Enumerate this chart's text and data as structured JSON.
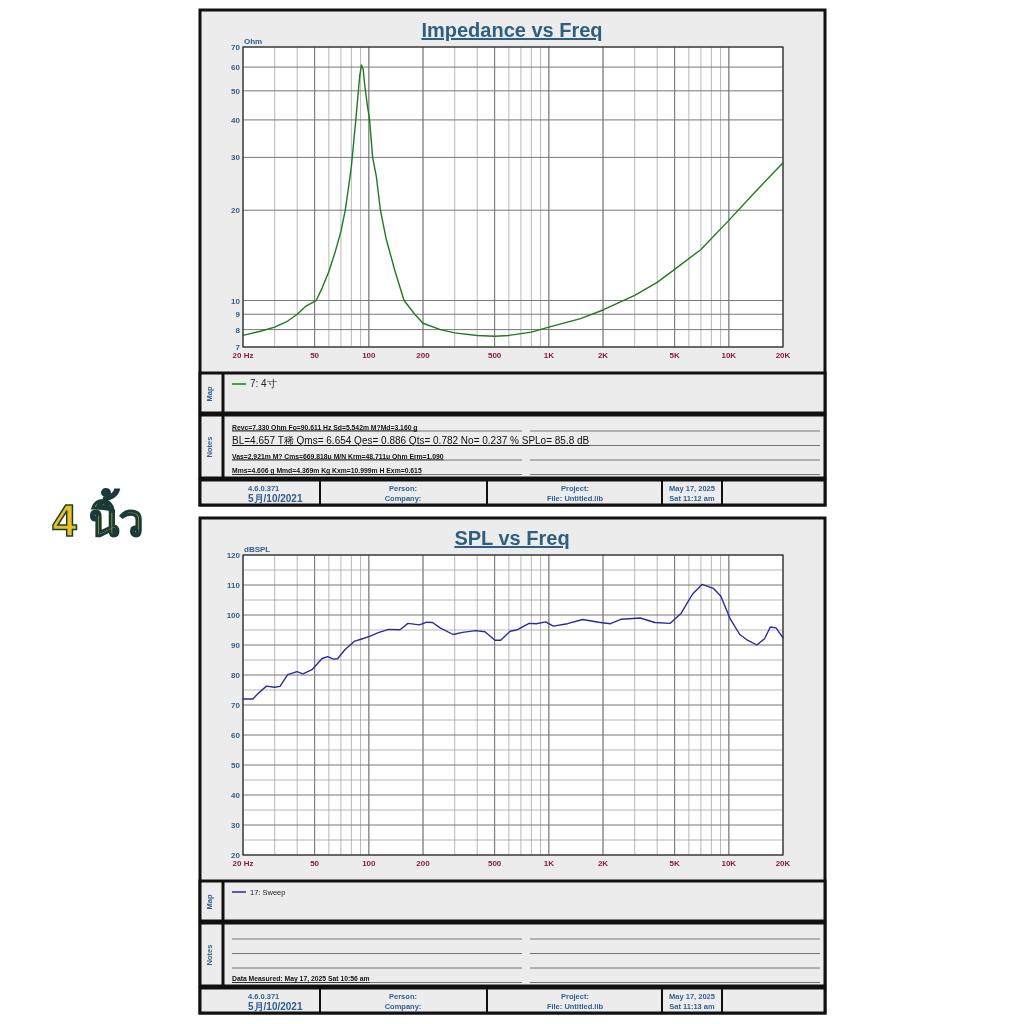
{
  "chart_data": [
    {
      "type": "line",
      "title": "Impedance vs Freq",
      "ylabel": "Ohm",
      "log": "xy",
      "grid": true,
      "legend": "bottom",
      "line_style": "solid",
      "xlim": [
        20,
        20000
      ],
      "ylim": [
        7,
        70
      ],
      "xticks": [
        {
          "value": 20,
          "label": "20  Hz"
        },
        50,
        100,
        200,
        500,
        {
          "value": 1000,
          "label": "1K"
        },
        {
          "value": 2000,
          "label": "2K"
        },
        {
          "value": 5000,
          "label": "5K"
        },
        {
          "value": 10000,
          "label": "10K"
        },
        {
          "value": 20000,
          "label": "20K"
        }
      ],
      "yticks": [
        7,
        8,
        9,
        10,
        20,
        30,
        40,
        50,
        60,
        70
      ],
      "series": [
        {
          "name": "7: 4寸",
          "color": "#1f7a1f",
          "x": [
            20,
            25,
            30,
            35,
            40,
            45,
            51,
            55,
            60,
            65,
            70,
            74,
            78,
            80,
            84,
            87,
            89,
            91,
            93,
            95,
            98,
            101,
            105,
            110,
            116,
            125,
            140,
            157,
            180,
            200,
            250,
            300,
            400,
            500,
            600,
            800,
            1000,
            1500,
            2000,
            3000,
            4000,
            5000,
            7000,
            10000,
            14000,
            20000
          ],
          "values": [
            7.65,
            7.9,
            8.15,
            8.5,
            9.0,
            9.6,
            10,
            11,
            12.5,
            14.5,
            17,
            20,
            25,
            28,
            38,
            48,
            56,
            61,
            59,
            52,
            45,
            40,
            30,
            26,
            20,
            16,
            12.5,
            10,
            9.0,
            8.4,
            8.0,
            7.8,
            7.65,
            7.6,
            7.65,
            7.85,
            8.15,
            8.7,
            9.3,
            10.4,
            11.5,
            12.7,
            14.8,
            18.5,
            23,
            28.8
          ]
        }
      ],
      "annotations": [
        "Map",
        "Notes",
        "4.6.0.371",
        "5月/10/2021",
        "Person:",
        "Company:",
        "Project:",
        "File: Untitled.lib",
        "May 17, 2025",
        "Sat 11:12 am",
        "Revc=7.330 Ohm  Fo=90.611 Hz  Sd=5.542m M?Md=3.160 g",
        "BL=4.657 T稀  Qms= 6.654  Qes= 0.886  Qts= 0.782  No= 0.237 %  SPLo= 85.8 dB",
        "Vas=2.921m M? Cms=669.818u M/N  Krm=48.711u Ohm  Erm=1.090",
        "Mms=4.606 g  Mmd=4.369m Kg  Kxm=10.999m H  Exm=0.615",
        "4 นิ้ว"
      ]
    },
    {
      "type": "line",
      "title": "SPL vs Freq",
      "ylabel": "dBSPL",
      "log": "x",
      "grid": true,
      "legend": "bottom",
      "line_style": "solid",
      "xlim": [
        20,
        20000
      ],
      "ylim": [
        20,
        120
      ],
      "xticks": [
        {
          "value": 20,
          "label": "20  Hz"
        },
        50,
        100,
        200,
        500,
        {
          "value": 1000,
          "label": "1K"
        },
        {
          "value": 2000,
          "label": "2K"
        },
        {
          "value": 5000,
          "label": "5K"
        },
        {
          "value": 10000,
          "label": "10K"
        },
        {
          "value": 20000,
          "label": "20K"
        }
      ],
      "yticks": [
        20,
        30,
        40,
        50,
        60,
        70,
        80,
        90,
        100,
        110,
        120
      ],
      "series": [
        {
          "name": "17: Sweep",
          "color": "#2a2aa0",
          "x": [
            20,
            22.7,
            24.5,
            27,
            29.9,
            32.1,
            35.4,
            39.9,
            43.1,
            48.6,
            55,
            59.1,
            63.6,
            67.1,
            73.6,
            82.9,
            91.3,
            101,
            114,
            129,
            149,
            165,
            191,
            210,
            226,
            249,
            294,
            332,
            392,
            442,
            502,
            540,
            610,
            670,
            777,
            852,
            961,
            1060,
            1270,
            1540,
            1890,
            2200,
            2530,
            3220,
            3880,
            4710,
            5440,
            6290,
            7100,
            8200,
            9020,
            10200,
            11500,
            12700,
            14300,
            15800,
            17000,
            18300,
            20000
          ],
          "values": [
            72,
            72,
            74.1,
            76.3,
            75.9,
            76.2,
            80.1,
            81.1,
            80.4,
            81.9,
            85.5,
            86.1,
            85.3,
            85.4,
            88.4,
            91.2,
            92.0,
            92.9,
            94.2,
            95.2,
            95.1,
            97.2,
            96.7,
            97.6,
            97.5,
            95.7,
            93.5,
            94.2,
            94.8,
            94.4,
            91.6,
            91.6,
            94.6,
            95.1,
            97.2,
            97.1,
            97.7,
            96.3,
            97.1,
            98.5,
            97.6,
            97.1,
            98.6,
            99.0,
            97.5,
            97.2,
            100.6,
            107,
            110.2,
            108.9,
            106.3,
            98.6,
            93.5,
            91.6,
            90.0,
            92.1,
            96.0,
            95.7,
            92.4
          ]
        }
      ],
      "annotations": [
        "Map",
        "Notes",
        "4.6.0.371",
        "5月/10/2021",
        "Person:",
        "Company:",
        "Project:",
        "File: Untitled.lib",
        "May 17, 2025",
        "Sat 11:13 am",
        "Data Measured: May 17, 2025  Sat 10:56 am"
      ]
    }
  ]
}
